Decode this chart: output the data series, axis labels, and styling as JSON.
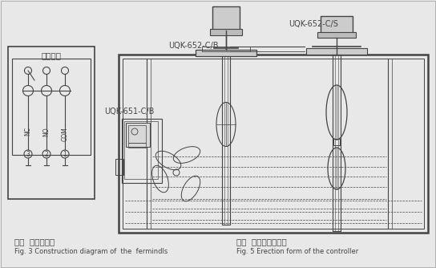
{
  "bg_color": "#e8e8e8",
  "lc": "#666666",
  "dc": "#444444",
  "fig_width": 5.44,
  "fig_height": 3.34,
  "caption_left_cn": "图三  端子接线图",
  "caption_left_en": "Fig. 3 Construction diagram of  the  fermindls",
  "caption_right_cn": "图五  控制器安装形式",
  "caption_right_en": "Fig. 5 Erection form of the controller",
  "label_uqk651": "UQK-651-C/B",
  "label_uqk652b": "UQK-652-C/B",
  "label_uqk652s": "UQK-652-C/S",
  "label_weidong": "微动开关",
  "label_nc": "NC",
  "label_no": "NO",
  "label_com": "COM"
}
